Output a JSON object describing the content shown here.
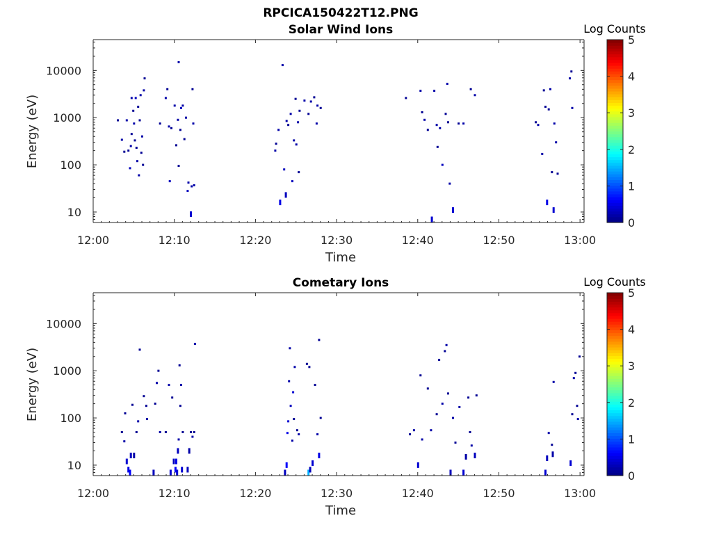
{
  "figure": {
    "file_title": "RPCICA150422T12.PNG"
  },
  "chart_data": [
    {
      "type": "heatmap",
      "title": "Solar Wind Ions",
      "xlabel": "Time",
      "ylabel": "Energy (eV)",
      "x_ticks": [
        "12:00",
        "12:10",
        "12:20",
        "12:30",
        "12:40",
        "12:50",
        "13:00"
      ],
      "xlim_minutes": [
        0,
        60.5
      ],
      "y_scale": "log",
      "ylim": [
        6,
        45000
      ],
      "y_ticks": [
        {
          "value": 10,
          "label": "10"
        },
        {
          "value": 100,
          "label": "100"
        },
        {
          "value": 1000,
          "label": "1000"
        },
        {
          "value": 10000,
          "label": "10000"
        }
      ],
      "colorbar": {
        "label": "Log Counts",
        "min": 0,
        "max": 5,
        "ticks": [
          "0",
          "1",
          "2",
          "3",
          "4",
          "5"
        ],
        "colormap": "jet"
      },
      "points": [
        [
          3.0,
          880,
          0.1
        ],
        [
          3.5,
          340,
          0.2
        ],
        [
          3.8,
          190,
          0.1
        ],
        [
          4.1,
          880,
          0.2
        ],
        [
          4.3,
          200,
          0.1
        ],
        [
          4.5,
          85,
          0.3
        ],
        [
          4.6,
          250,
          0.2
        ],
        [
          4.7,
          450,
          0.1
        ],
        [
          4.7,
          2600,
          0.2
        ],
        [
          4.9,
          1400,
          0.1
        ],
        [
          5.0,
          750,
          0.2
        ],
        [
          5.1,
          330,
          0.1
        ],
        [
          5.2,
          2600,
          0.3
        ],
        [
          5.3,
          230,
          0.1
        ],
        [
          5.4,
          120,
          0.2
        ],
        [
          5.5,
          1700,
          0.1
        ],
        [
          5.6,
          60,
          0.2
        ],
        [
          5.7,
          880,
          0.1
        ],
        [
          5.8,
          3000,
          0.2
        ],
        [
          5.9,
          180,
          0.1
        ],
        [
          6.0,
          400,
          0.2
        ],
        [
          6.1,
          100,
          0.1
        ],
        [
          6.2,
          3800,
          0.2
        ],
        [
          6.3,
          6800,
          0.1
        ],
        [
          8.2,
          750,
          0.1
        ],
        [
          8.9,
          2600,
          0.2
        ],
        [
          9.1,
          4000,
          0.1
        ],
        [
          9.3,
          650,
          0.2
        ],
        [
          9.4,
          45,
          0.3
        ],
        [
          9.6,
          600,
          0.1
        ],
        [
          10.0,
          1800,
          0.2
        ],
        [
          10.2,
          260,
          0.1
        ],
        [
          10.4,
          900,
          0.2
        ],
        [
          10.5,
          95,
          0.1
        ],
        [
          10.5,
          15000,
          0.2
        ],
        [
          10.7,
          550,
          0.1
        ],
        [
          10.8,
          1600,
          0.3
        ],
        [
          11.0,
          1800,
          0.2
        ],
        [
          11.2,
          350,
          0.1
        ],
        [
          11.4,
          1000,
          0.2
        ],
        [
          11.6,
          28,
          0.3
        ],
        [
          11.7,
          42,
          0.2
        ],
        [
          12.0,
          9,
          0.4
        ],
        [
          12.1,
          35,
          0.2
        ],
        [
          12.2,
          4000,
          0.1
        ],
        [
          12.3,
          750,
          0.2
        ],
        [
          12.4,
          37,
          0.2
        ],
        [
          22.4,
          200,
          0.2
        ],
        [
          22.5,
          280,
          0.1
        ],
        [
          22.8,
          550,
          0.2
        ],
        [
          23.0,
          16,
          0.5
        ],
        [
          23.3,
          13000,
          0.2
        ],
        [
          23.5,
          80,
          0.3
        ],
        [
          23.7,
          23,
          0.3
        ],
        [
          23.8,
          850,
          0.2
        ],
        [
          24.0,
          700,
          0.1
        ],
        [
          24.3,
          1200,
          0.2
        ],
        [
          24.5,
          45,
          0.3
        ],
        [
          24.7,
          330,
          0.2
        ],
        [
          24.9,
          2500,
          0.1
        ],
        [
          25.0,
          270,
          0.2
        ],
        [
          25.2,
          800,
          0.2
        ],
        [
          25.4,
          1400,
          0.1
        ],
        [
          26.0,
          2300,
          0.2
        ],
        [
          26.5,
          1200,
          0.1
        ],
        [
          26.8,
          2200,
          0.2
        ],
        [
          27.2,
          2700,
          0.1
        ],
        [
          27.6,
          1800,
          0.2
        ],
        [
          28.0,
          1600,
          0.1
        ],
        [
          25.3,
          70,
          0.1
        ],
        [
          27.5,
          750,
          0.2
        ],
        [
          38.5,
          2600,
          0.1
        ],
        [
          40.3,
          3700,
          0.2
        ],
        [
          40.5,
          1300,
          0.1
        ],
        [
          40.8,
          900,
          0.2
        ],
        [
          41.2,
          550,
          0.1
        ],
        [
          41.7,
          7,
          0.4
        ],
        [
          42.0,
          3700,
          0.2
        ],
        [
          42.4,
          240,
          0.1
        ],
        [
          42.7,
          600,
          0.2
        ],
        [
          43.0,
          100,
          0.3
        ],
        [
          43.4,
          1200,
          0.1
        ],
        [
          43.6,
          5200,
          0.2
        ],
        [
          43.9,
          40,
          0.2
        ],
        [
          44.3,
          11,
          0.4
        ],
        [
          45.0,
          750,
          0.1
        ],
        [
          45.6,
          750,
          0.2
        ],
        [
          46.5,
          4000,
          0.1
        ],
        [
          47.0,
          3000,
          0.2
        ],
        [
          43.7,
          800,
          0.1
        ],
        [
          42.3,
          700,
          0.2
        ],
        [
          54.5,
          800,
          0.1
        ],
        [
          54.8,
          700,
          0.2
        ],
        [
          55.3,
          170,
          0.2
        ],
        [
          55.7,
          1700,
          0.1
        ],
        [
          55.9,
          16,
          0.5
        ],
        [
          56.1,
          1500,
          0.1
        ],
        [
          56.3,
          4000,
          0.2
        ],
        [
          56.5,
          70,
          0.1
        ],
        [
          56.7,
          11,
          0.4
        ],
        [
          57.0,
          300,
          0.2
        ],
        [
          57.2,
          65,
          0.1
        ],
        [
          58.7,
          6800,
          0.2
        ],
        [
          58.9,
          9500,
          0.1
        ],
        [
          59.0,
          1600,
          0.2
        ],
        [
          55.5,
          3800,
          0.1
        ],
        [
          56.8,
          750,
          0.2
        ]
      ]
    },
    {
      "type": "heatmap",
      "title": "Cometary Ions",
      "xlabel": "Time",
      "ylabel": "Energy (eV)",
      "x_ticks": [
        "12:00",
        "12:10",
        "12:20",
        "12:30",
        "12:40",
        "12:50",
        "13:00"
      ],
      "xlim_minutes": [
        0,
        60.5
      ],
      "y_scale": "log",
      "ylim": [
        6,
        45000
      ],
      "y_ticks": [
        {
          "value": 10,
          "label": "10"
        },
        {
          "value": 100,
          "label": "100"
        },
        {
          "value": 1000,
          "label": "1000"
        },
        {
          "value": 10000,
          "label": "10000"
        }
      ],
      "colorbar": {
        "label": "Log Counts",
        "min": 0,
        "max": 5,
        "ticks": [
          "0",
          "1",
          "2",
          "3",
          "4",
          "5"
        ],
        "colormap": "jet"
      },
      "points": [
        [
          3.5,
          50,
          0.1
        ],
        [
          3.8,
          32,
          0.2
        ],
        [
          3.9,
          125,
          0.1
        ],
        [
          4.1,
          12,
          0.4
        ],
        [
          4.3,
          8,
          0.5
        ],
        [
          4.5,
          7,
          0.6
        ],
        [
          4.6,
          16,
          0.3
        ],
        [
          4.8,
          190,
          0.1
        ],
        [
          5.0,
          16,
          0.2
        ],
        [
          5.3,
          50,
          0.1
        ],
        [
          5.5,
          85,
          0.2
        ],
        [
          5.7,
          2800,
          0.1
        ],
        [
          6.2,
          290,
          0.1
        ],
        [
          6.5,
          180,
          0.1
        ],
        [
          6.6,
          95,
          0.2
        ],
        [
          7.4,
          7,
          0.3
        ],
        [
          7.6,
          200,
          0.1
        ],
        [
          7.8,
          550,
          0.2
        ],
        [
          8.0,
          1000,
          0.1
        ],
        [
          8.2,
          50,
          0.2
        ],
        [
          8.9,
          50,
          0.1
        ],
        [
          9.3,
          500,
          0.2
        ],
        [
          9.5,
          7,
          0.4
        ],
        [
          9.7,
          270,
          0.1
        ],
        [
          9.9,
          12,
          0.3
        ],
        [
          10.1,
          8,
          0.6
        ],
        [
          10.2,
          12,
          0.5
        ],
        [
          10.3,
          7,
          0.4
        ],
        [
          10.4,
          20,
          0.3
        ],
        [
          10.5,
          35,
          0.2
        ],
        [
          10.6,
          1300,
          0.1
        ],
        [
          10.7,
          180,
          0.1
        ],
        [
          10.8,
          500,
          0.2
        ],
        [
          10.9,
          8,
          0.4
        ],
        [
          11.0,
          50,
          0.1
        ],
        [
          11.6,
          8,
          0.3
        ],
        [
          11.8,
          20,
          0.2
        ],
        [
          12.0,
          50,
          0.1
        ],
        [
          12.2,
          40,
          0.2
        ],
        [
          12.4,
          50,
          0.1
        ],
        [
          12.5,
          3700,
          0.2
        ],
        [
          23.6,
          7,
          0.3
        ],
        [
          23.8,
          10,
          0.6
        ],
        [
          23.9,
          48,
          0.5
        ],
        [
          24.0,
          85,
          0.4
        ],
        [
          24.1,
          600,
          0.2
        ],
        [
          24.2,
          3000,
          0.2
        ],
        [
          24.3,
          180,
          0.3
        ],
        [
          24.5,
          33,
          0.2
        ],
        [
          24.6,
          350,
          0.4
        ],
        [
          24.7,
          95,
          0.1
        ],
        [
          24.8,
          1200,
          0.2
        ],
        [
          25.1,
          55,
          0.1
        ],
        [
          25.3,
          45,
          0.2
        ],
        [
          26.3,
          1400,
          0.1
        ],
        [
          26.5,
          7,
          1.5
        ],
        [
          26.7,
          8,
          0.3
        ],
        [
          27.0,
          11,
          0.4
        ],
        [
          27.3,
          500,
          0.1
        ],
        [
          27.6,
          45,
          0.2
        ],
        [
          27.8,
          16,
          0.5
        ],
        [
          28.0,
          100,
          0.1
        ],
        [
          27.8,
          4500,
          0.1
        ],
        [
          26.6,
          1200,
          0.1
        ],
        [
          39.0,
          45,
          0.1
        ],
        [
          39.5,
          55,
          0.2
        ],
        [
          40.0,
          10,
          0.4
        ],
        [
          40.3,
          800,
          0.1
        ],
        [
          40.5,
          35,
          0.2
        ],
        [
          41.2,
          420,
          0.1
        ],
        [
          41.6,
          55,
          0.2
        ],
        [
          42.3,
          120,
          0.1
        ],
        [
          43.0,
          200,
          0.2
        ],
        [
          43.3,
          2600,
          0.1
        ],
        [
          43.5,
          3500,
          0.2
        ],
        [
          43.7,
          330,
          0.1
        ],
        [
          44.0,
          7,
          0.3
        ],
        [
          44.3,
          100,
          0.2
        ],
        [
          44.6,
          30,
          0.1
        ],
        [
          45.1,
          170,
          0.2
        ],
        [
          45.6,
          7,
          0.4
        ],
        [
          45.9,
          15,
          0.2
        ],
        [
          46.2,
          270,
          0.1
        ],
        [
          46.4,
          50,
          0.1
        ],
        [
          46.6,
          26,
          0.2
        ],
        [
          47.0,
          16,
          0.3
        ],
        [
          47.2,
          300,
          0.1
        ],
        [
          42.6,
          1700,
          0.1
        ],
        [
          55.7,
          7,
          0.4
        ],
        [
          55.9,
          14,
          0.3
        ],
        [
          56.1,
          48,
          0.2
        ],
        [
          56.5,
          27,
          0.1
        ],
        [
          56.7,
          580,
          0.2
        ],
        [
          58.8,
          11,
          0.4
        ],
        [
          59.0,
          120,
          0.1
        ],
        [
          59.2,
          700,
          0.2
        ],
        [
          59.4,
          900,
          0.1
        ],
        [
          59.7,
          95,
          0.2
        ],
        [
          59.9,
          2000,
          0.1
        ],
        [
          59.6,
          180,
          0.1
        ],
        [
          56.6,
          17,
          0.2
        ]
      ]
    }
  ]
}
